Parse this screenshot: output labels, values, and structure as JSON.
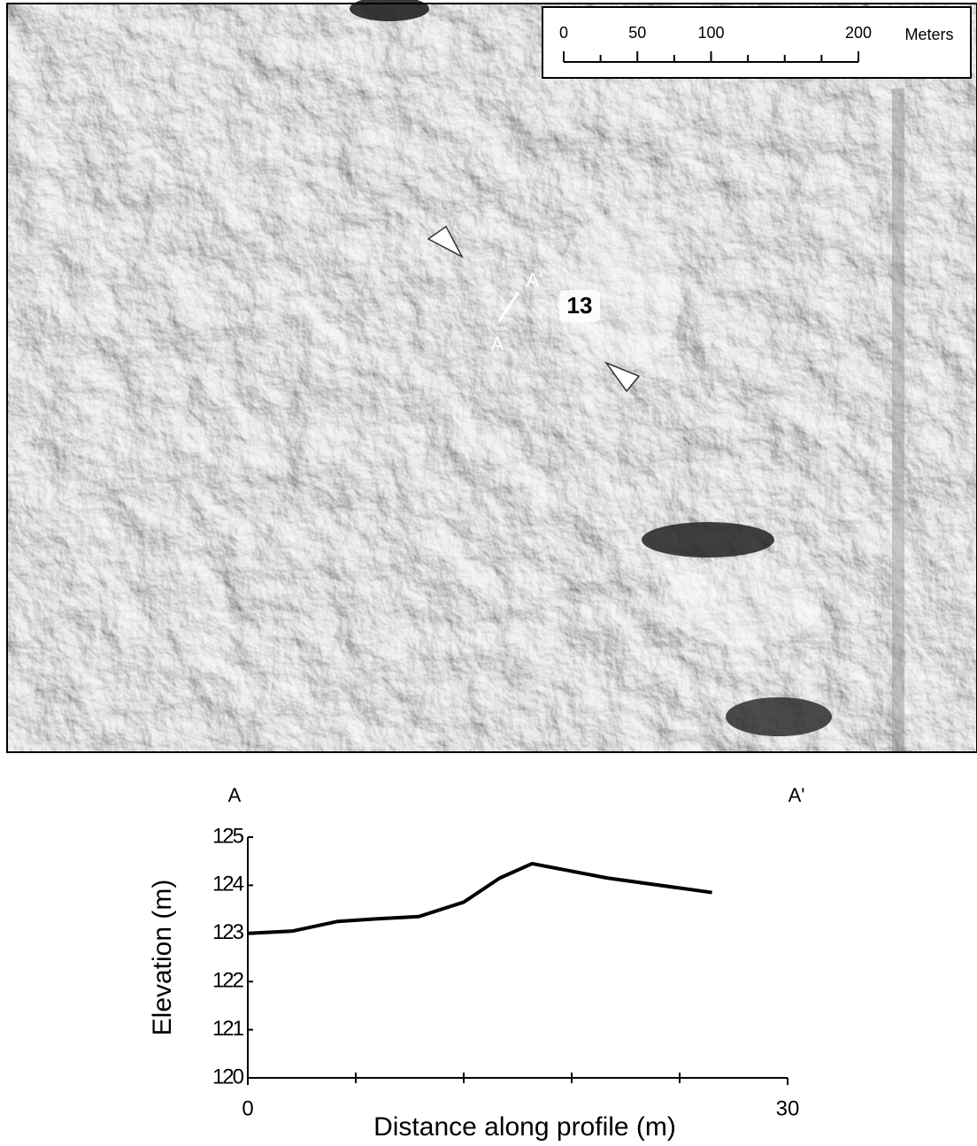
{
  "map": {
    "scale_bar": {
      "ticks": [
        0,
        50,
        100,
        200
      ],
      "minor_ticks": [
        25,
        75,
        125,
        150,
        175
      ],
      "max": 200,
      "unit": "Meters"
    },
    "labels": {
      "a_prime": "A'",
      "a": "A",
      "site": "13"
    }
  },
  "chart_data": {
    "type": "line",
    "annotations": [
      "A",
      "A'"
    ],
    "x_label": "Distance along profile (m)",
    "y_label": "Elevation (m)",
    "x": [
      0,
      2.5,
      5,
      7,
      9.5,
      12,
      14,
      15.8,
      20,
      25.8
    ],
    "series": [
      {
        "color": "#000000",
        "values": [
          123.0,
          123.05,
          123.25,
          123.3,
          123.35,
          123.65,
          124.15,
          124.45,
          124.15,
          123.85
        ]
      }
    ],
    "xlim": [
      0,
      30
    ],
    "xticks": [
      0,
      30
    ],
    "xminorticks": [
      6,
      12,
      18,
      24
    ],
    "ylim": [
      120,
      125
    ],
    "yticks": [
      120,
      121,
      122,
      123,
      124,
      125
    ]
  }
}
